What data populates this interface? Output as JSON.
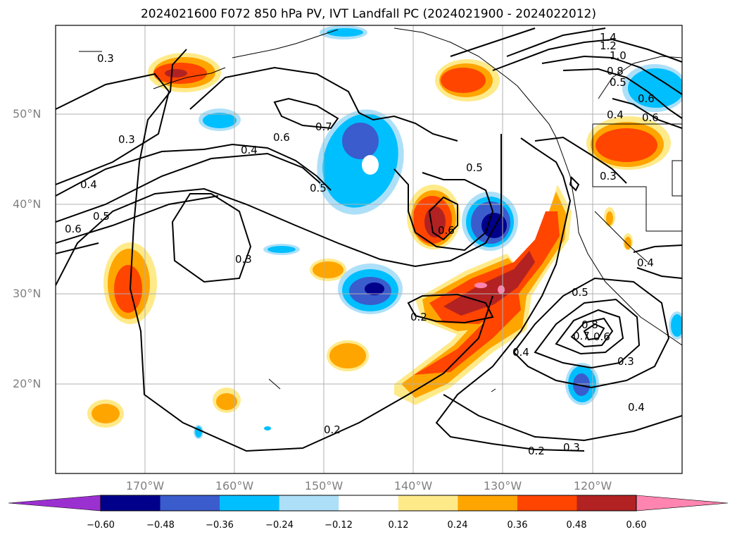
{
  "title": "2024021600 F072 850 hPa PV, IVT Landfall PC (2024021900 - 2024022012)",
  "lat_labels": [
    "50°N",
    "40°N",
    "30°N",
    "20°N"
  ],
  "lon_labels": [
    "170°W",
    "160°W",
    "150°W",
    "140°W",
    "130°W",
    "120°W"
  ],
  "colorbar": {
    "ticks": [
      "−0.60",
      "−0.48",
      "−0.36",
      "−0.24",
      "−0.12",
      "0.12",
      "0.24",
      "0.36",
      "0.48",
      "0.60"
    ],
    "colors": [
      "#9b30d0",
      "#00008b",
      "#3a5ccc",
      "#00bfff",
      "#ade0f8",
      "#ffffff",
      "#ffea8a",
      "#ffa500",
      "#ff4500",
      "#b22222",
      "#ff85b0"
    ]
  },
  "contour_labels": [
    "0.3",
    "0.3",
    "0.4",
    "0.5",
    "0.6",
    "0.4",
    "0.6",
    "0.7",
    "0.5",
    "0.5",
    "0.6",
    "0.3",
    "0.2",
    "0.2",
    "0.3",
    "0.4",
    "0.5",
    "0.6",
    "0.7",
    "0.8",
    "0.3",
    "0.2",
    "0.4",
    "0.4",
    "0.3",
    "0.4",
    "0.5",
    "0.6",
    "0.8",
    "1.0",
    "1.2",
    "1.4",
    "0.6"
  ]
}
